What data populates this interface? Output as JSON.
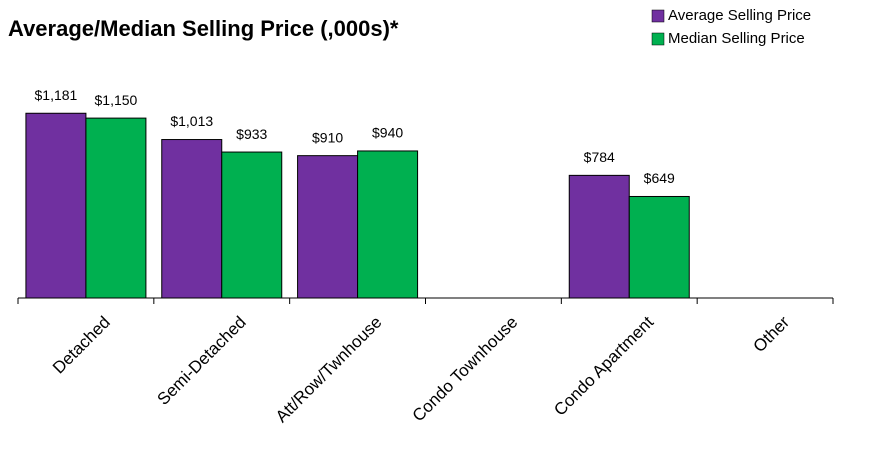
{
  "chart_data": {
    "type": "bar",
    "title": "Average/Median Selling Price (,000s)*",
    "categories": [
      "Detached",
      "Semi-Detached",
      "Att/Row/Twnhouse",
      "Condo Townhouse",
      "Condo Apartment",
      "Other"
    ],
    "series": [
      {
        "name": "Average Selling Price",
        "color": "#7030a0",
        "values": [
          1181,
          1013,
          910,
          null,
          784,
          null
        ],
        "value_labels": [
          "$1,181",
          "$1,013",
          "$910",
          null,
          "$784",
          null
        ]
      },
      {
        "name": "Median Selling Price",
        "color": "#00b050",
        "values": [
          1150,
          933,
          940,
          null,
          649,
          null
        ],
        "value_labels": [
          "$1,150",
          "$933",
          "$940",
          null,
          "$649",
          null
        ]
      }
    ],
    "ylim": [
      0,
      1400
    ],
    "legend": "top-right"
  }
}
